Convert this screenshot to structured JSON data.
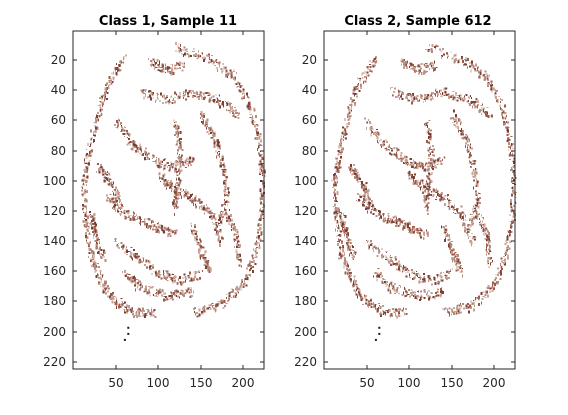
{
  "figure": {
    "background": "#ffffff",
    "speck_colors": [
      "#b58a7e",
      "#9c5a48",
      "#c8a092",
      "#7a3f33"
    ],
    "dark_marker_color": "#1a1a1a"
  },
  "panels": [
    {
      "id": "left",
      "title": "Class 1, Sample 11",
      "x_ticks": [
        "50",
        "100",
        "150",
        "200"
      ],
      "y_ticks": [
        "20",
        "40",
        "60",
        "80",
        "100",
        "120",
        "140",
        "160",
        "180",
        "200",
        "220"
      ]
    },
    {
      "id": "right",
      "title": "Class 2, Sample 612",
      "x_ticks": [
        "50",
        "100",
        "150",
        "200"
      ],
      "y_ticks": [
        "20",
        "40",
        "60",
        "80",
        "100",
        "120",
        "140",
        "160",
        "180",
        "200",
        "220"
      ]
    }
  ],
  "axes": {
    "x_range": [
      0,
      224
    ],
    "y_range": [
      0,
      224
    ],
    "y_reversed": true,
    "grid": false
  }
}
